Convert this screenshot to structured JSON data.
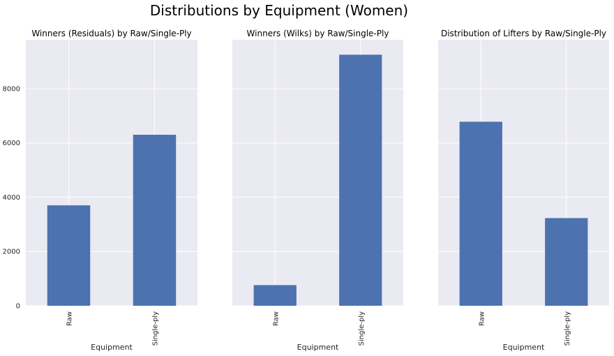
{
  "figure_title": "Distributions by Equipment (Women)",
  "colors": {
    "bar": "#4C72B0",
    "axes_bg": "#EAEAF2",
    "grid": "#FFFFFF"
  },
  "chart_data": [
    {
      "type": "bar",
      "title": "Winners (Residuals) by Raw/Single-Ply",
      "xlabel": "Equipment",
      "ylabel": "",
      "categories": [
        "Raw",
        "Single-ply"
      ],
      "values": [
        3700,
        6300
      ],
      "ylim": [
        0,
        9800
      ],
      "yticks": [
        "0",
        "2000",
        "4000",
        "6000",
        "8000"
      ],
      "grid": true
    },
    {
      "type": "bar",
      "title": "Winners (Wilks) by Raw/Single-Ply",
      "xlabel": "Equipment",
      "ylabel": "",
      "categories": [
        "Raw",
        "Single-ply"
      ],
      "values": [
        760,
        9250
      ],
      "ylim": [
        0,
        9800
      ],
      "grid": true
    },
    {
      "type": "bar",
      "title": "Distribution of Lifters by Raw/Single-Ply",
      "xlabel": "Equipment",
      "ylabel": "",
      "categories": [
        "Raw",
        "Single-ply"
      ],
      "values": [
        6780,
        3230
      ],
      "ylim": [
        0,
        9800
      ],
      "grid": true
    }
  ]
}
